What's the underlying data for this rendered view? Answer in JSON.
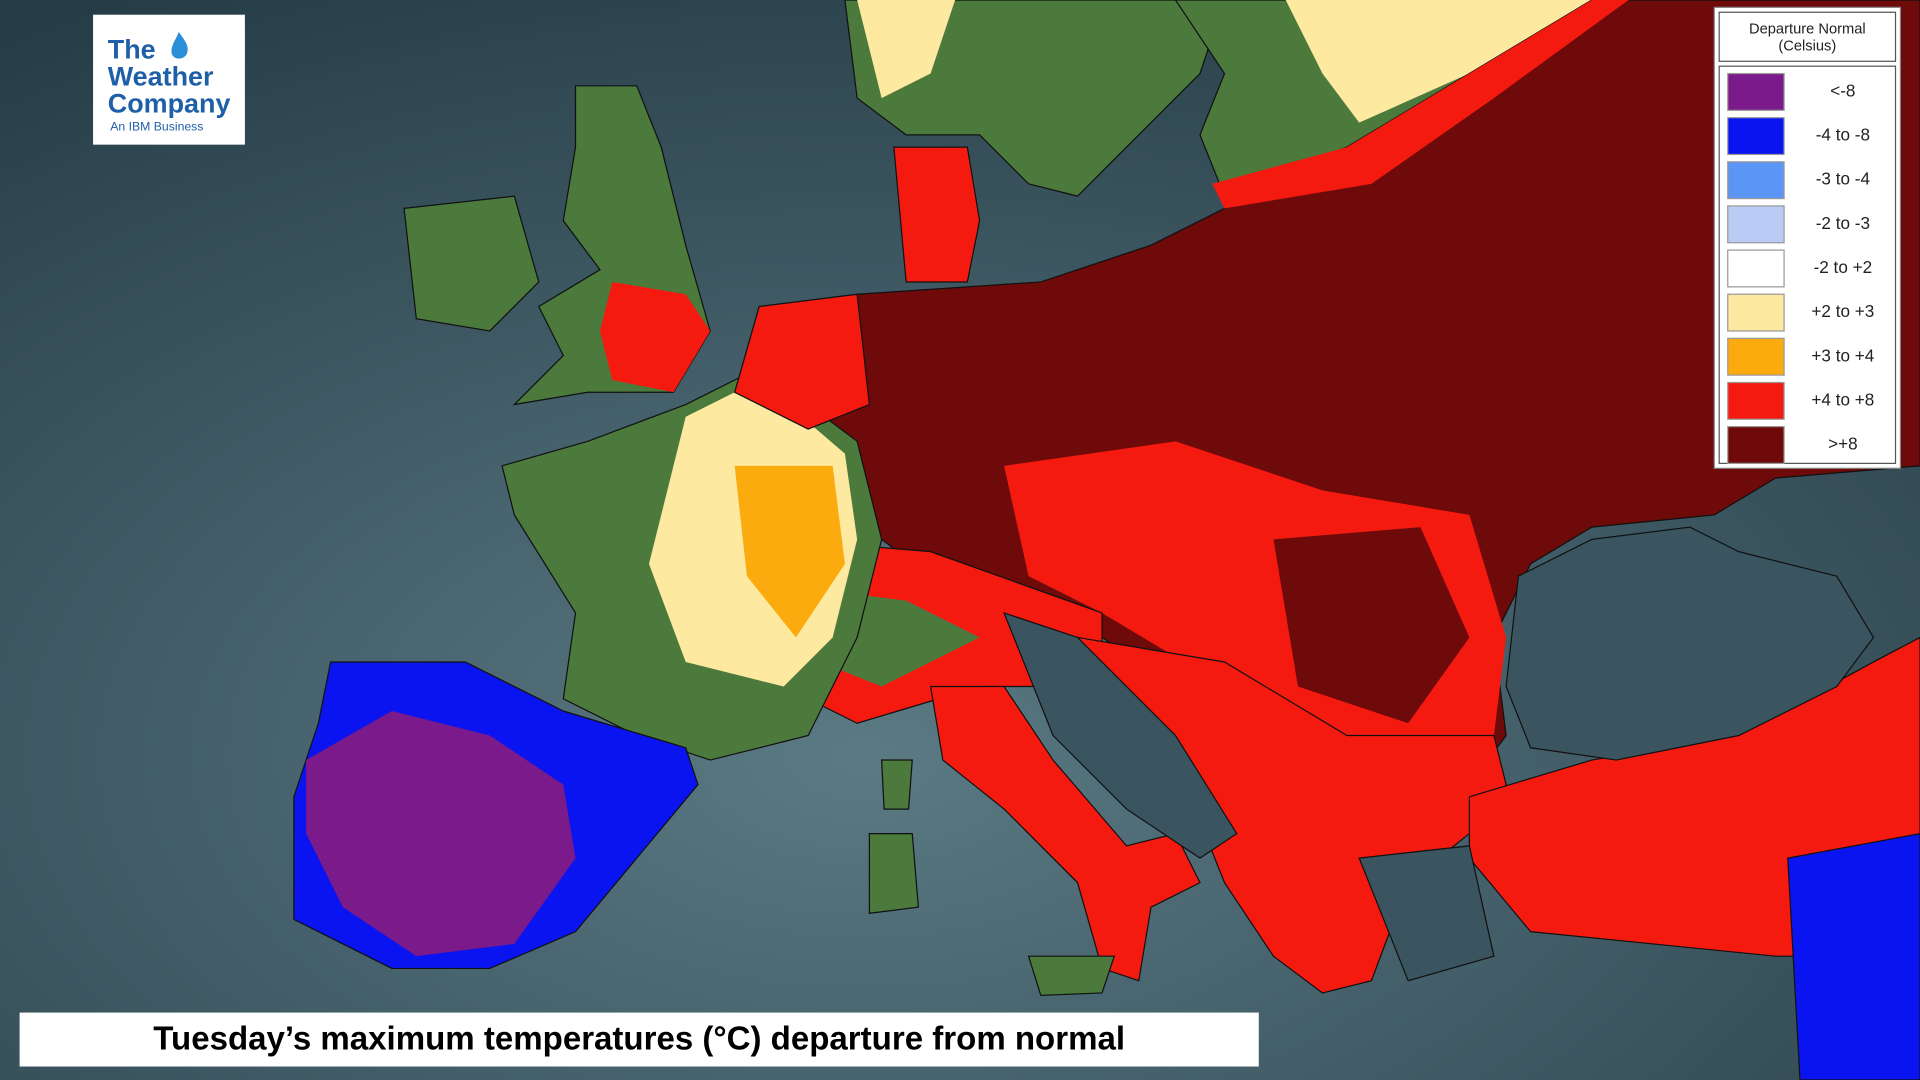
{
  "logo": {
    "line1": "The",
    "line2": "Weather",
    "line3": "Company",
    "tagline": "An IBM Business"
  },
  "legend": {
    "title": [
      "Departure Normal",
      "(Celsius)"
    ],
    "items": [
      {
        "label": "<-8",
        "color": "#7b1a8a"
      },
      {
        "label": "-4 to -8",
        "color": "#0a14f0"
      },
      {
        "label": "-3 to -4",
        "color": "#5b95f5"
      },
      {
        "label": "-2 to -3",
        "color": "#b8ccf5"
      },
      {
        "label": "-2 to +2",
        "color": "#ffffff"
      },
      {
        "label": "+2 to +3",
        "color": "#fde9a0"
      },
      {
        "label": "+3 to +4",
        "color": "#fbab0e"
      },
      {
        "label": "+4 to +8",
        "color": "#f51a10"
      },
      {
        "label": ">+8",
        "color": "#6e0a0a"
      }
    ]
  },
  "caption": "Tuesday’s maximum temperatures (°C) departure from normal"
}
